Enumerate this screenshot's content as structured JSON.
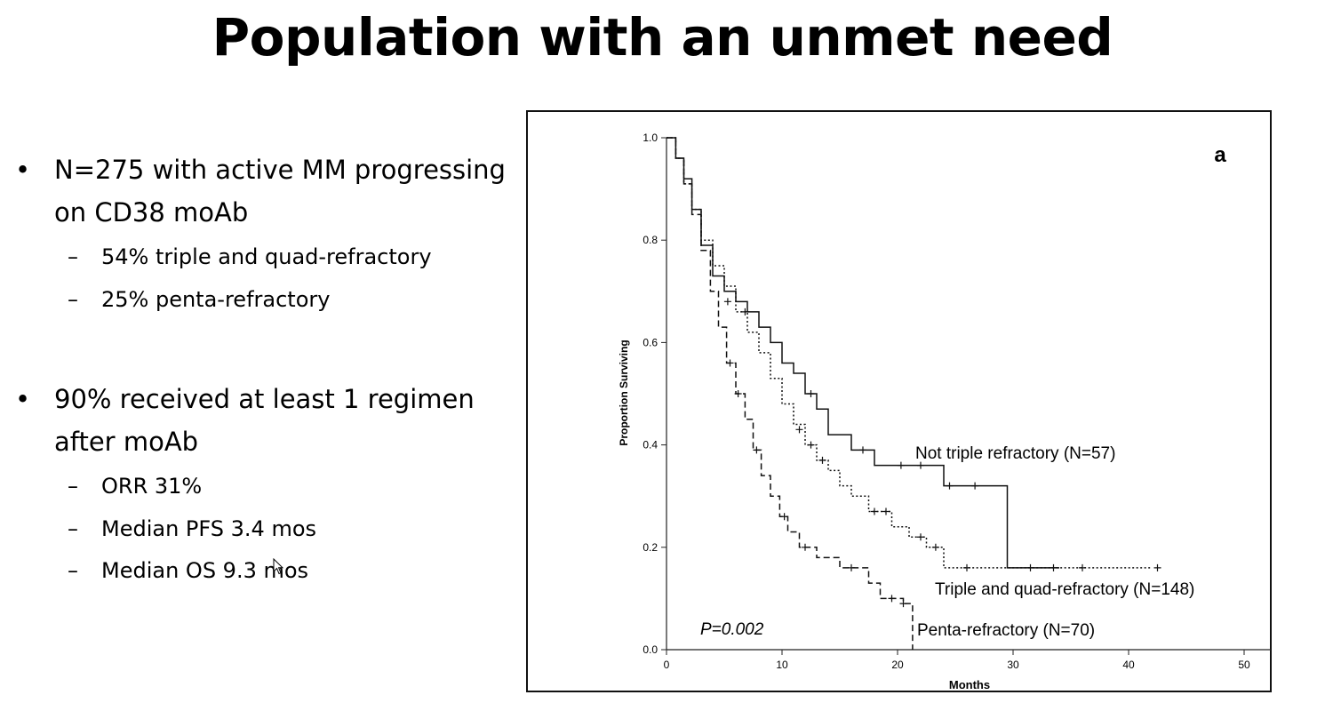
{
  "slide": {
    "title": "Population with an unmet need"
  },
  "bullets": [
    {
      "text": "N=275 with active MM progressing on CD38 moAb",
      "sub": [
        "54% triple and quad-refractory",
        "25% penta-refractory"
      ]
    },
    {
      "text": "90% received at least 1 regimen after moAb",
      "sub": [
        "ORR 31%",
        "Median PFS 3.4 mos",
        "Median OS 9.3 mos"
      ]
    }
  ],
  "chart_data": {
    "type": "line",
    "subtype": "kaplan-meier",
    "panel_label": "a",
    "xlabel": "Months",
    "ylabel": "Proportion Surviving",
    "xlim": [
      0,
      50
    ],
    "ylim": [
      0,
      1.0
    ],
    "xticks": [
      0,
      10,
      20,
      30,
      40,
      50
    ],
    "yticks": [
      0.0,
      0.2,
      0.4,
      0.6,
      0.8,
      1.0
    ],
    "annotation": "P=0.002",
    "series": [
      {
        "name": "Not triple refractory (N=57)",
        "line": "solid",
        "x": [
          0,
          0.8,
          1.5,
          2.2,
          3,
          4,
          5,
          6,
          7,
          8,
          9,
          10,
          11,
          12,
          13,
          14,
          16,
          18,
          24,
          29.5,
          34
        ],
        "y": [
          1.0,
          0.96,
          0.92,
          0.86,
          0.79,
          0.73,
          0.7,
          0.68,
          0.66,
          0.63,
          0.6,
          0.56,
          0.54,
          0.5,
          0.47,
          0.42,
          0.39,
          0.36,
          0.32,
          0.16,
          0.16
        ],
        "censored": [
          [
            5.3,
            0.68
          ],
          [
            6.8,
            0.66
          ],
          [
            12.5,
            0.5
          ],
          [
            17,
            0.39
          ],
          [
            20.3,
            0.36
          ],
          [
            22,
            0.36
          ],
          [
            24.5,
            0.32
          ],
          [
            26.7,
            0.32
          ],
          [
            31.5,
            0.16
          ],
          [
            33.5,
            0.16
          ]
        ]
      },
      {
        "name": "Triple and quad-refractory (N=148)",
        "line": "dotted",
        "x": [
          0,
          0.8,
          1.5,
          2.2,
          3,
          4,
          5,
          6,
          7,
          8,
          9,
          10,
          11,
          12,
          13,
          14,
          15,
          16,
          17.5,
          19.5,
          21,
          22.5,
          24,
          42
        ],
        "y": [
          1.0,
          0.96,
          0.91,
          0.86,
          0.8,
          0.75,
          0.71,
          0.66,
          0.62,
          0.58,
          0.53,
          0.48,
          0.44,
          0.4,
          0.37,
          0.35,
          0.32,
          0.3,
          0.27,
          0.24,
          0.22,
          0.2,
          0.16,
          0.16
        ],
        "censored": [
          [
            11.5,
            0.43
          ],
          [
            12.5,
            0.4
          ],
          [
            13.5,
            0.37
          ],
          [
            18,
            0.27
          ],
          [
            19,
            0.27
          ],
          [
            22,
            0.22
          ],
          [
            23.3,
            0.2
          ],
          [
            26,
            0.16
          ],
          [
            36,
            0.16
          ],
          [
            42.5,
            0.16
          ]
        ]
      },
      {
        "name": "Penta-refractory (N=70)",
        "line": "dashed",
        "x": [
          0,
          0.8,
          1.5,
          2.2,
          3,
          3.8,
          4.5,
          5.2,
          6,
          6.8,
          7.5,
          8.2,
          9,
          9.8,
          10.5,
          11.5,
          13,
          15,
          17.5,
          18.5,
          20.5,
          21.3
        ],
        "y": [
          1.0,
          0.96,
          0.91,
          0.85,
          0.78,
          0.7,
          0.63,
          0.56,
          0.5,
          0.45,
          0.39,
          0.34,
          0.3,
          0.26,
          0.23,
          0.2,
          0.18,
          0.16,
          0.13,
          0.1,
          0.09,
          0.0
        ],
        "censored": [
          [
            5.5,
            0.56
          ],
          [
            6.2,
            0.5
          ],
          [
            7.8,
            0.39
          ],
          [
            10.2,
            0.26
          ],
          [
            12,
            0.2
          ],
          [
            16,
            0.16
          ],
          [
            19.5,
            0.1
          ],
          [
            20.5,
            0.09
          ]
        ]
      }
    ]
  }
}
